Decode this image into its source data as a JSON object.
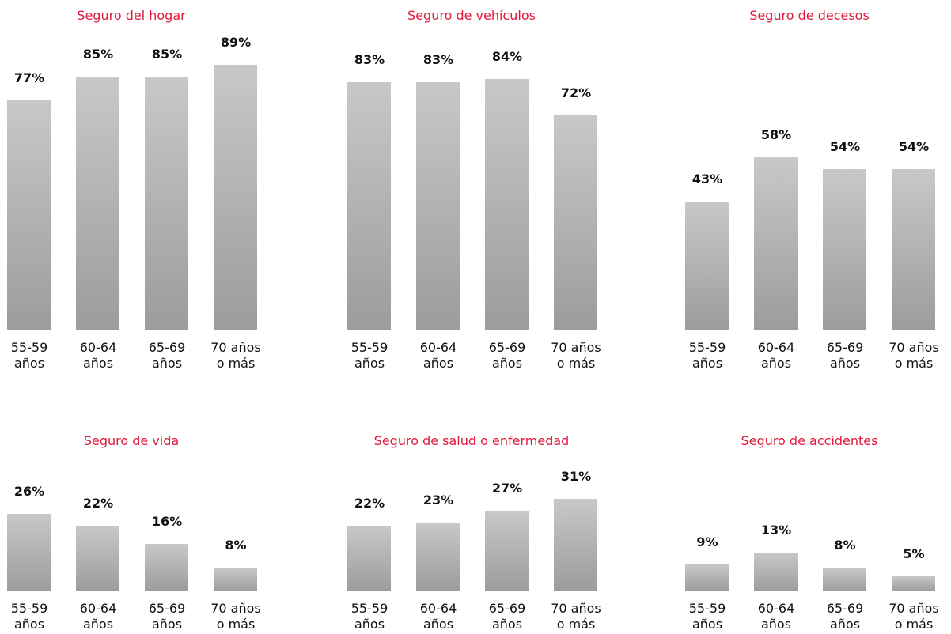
{
  "chart_data": [
    {
      "type": "bar",
      "title": "Seguro del hogar",
      "categories": [
        "55-59 años",
        "60-64 años",
        "65-69 años",
        "70 años o más"
      ],
      "values": [
        77,
        85,
        85,
        89
      ],
      "value_labels": [
        "77%",
        "85%",
        "85%",
        "89%"
      ],
      "color": "#c8c8c8",
      "ylim": [
        0,
        100
      ]
    },
    {
      "type": "bar",
      "title": "Seguro de vehículos",
      "categories": [
        "55-59 años",
        "60-64 años",
        "65-69 años",
        "70 años o más"
      ],
      "values": [
        83,
        83,
        84,
        72
      ],
      "value_labels": [
        "83%",
        "83%",
        "84%",
        "72%"
      ],
      "color": "#c8c8c8",
      "ylim": [
        0,
        100
      ]
    },
    {
      "type": "bar",
      "title": "Seguro de decesos",
      "categories": [
        "55-59 años",
        "60-64 años",
        "65-69 años",
        "70 años o más"
      ],
      "values": [
        43,
        58,
        54,
        54
      ],
      "value_labels": [
        "43%",
        "58%",
        "54%",
        "54%"
      ],
      "color": "#c8c8c8",
      "ylim": [
        0,
        100
      ]
    },
    {
      "type": "bar",
      "title": "Seguro de vida",
      "categories": [
        "55-59 años",
        "60-64 años",
        "65-69 años",
        "70 años o más"
      ],
      "values": [
        26,
        22,
        16,
        8
      ],
      "value_labels": [
        "26%",
        "22%",
        "16%",
        "8%"
      ],
      "color": "#c8c8c8",
      "ylim": [
        0,
        100
      ]
    },
    {
      "type": "bar",
      "title": "Seguro de salud o enfermedad",
      "categories": [
        "55-59 años",
        "60-64 años",
        "65-69 años",
        "70 años o más"
      ],
      "values": [
        22,
        23,
        27,
        31
      ],
      "value_labels": [
        "22%",
        "23%",
        "27%",
        "31%"
      ],
      "color": "#c8c8c8",
      "ylim": [
        0,
        100
      ]
    },
    {
      "type": "bar",
      "title": "Seguro de accidentes",
      "categories": [
        "55-59 años",
        "60-64 años",
        "65-69 años",
        "70 años o más"
      ],
      "values": [
        9,
        13,
        8,
        5
      ],
      "value_labels": [
        "9%",
        "13%",
        "8%",
        "5%"
      ],
      "color": "#c8c8c8",
      "ylim": [
        0,
        100
      ]
    }
  ]
}
